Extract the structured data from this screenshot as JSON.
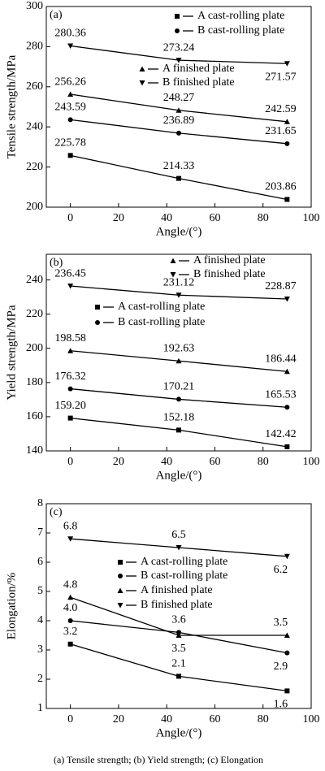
{
  "chart_data": [
    {
      "type": "line",
      "label": "(a)",
      "ylabel": "Tensile strength/MPa",
      "xlabel": "Angle/(°)",
      "x": [
        0,
        45,
        90
      ],
      "xlim": [
        -10,
        100
      ],
      "xticks": [
        0,
        20,
        40,
        60,
        80,
        100
      ],
      "ylim": [
        200,
        300
      ],
      "yticks": [
        200,
        220,
        240,
        260,
        280,
        300
      ],
      "series": [
        {
          "name": "A cast-rolling plate",
          "marker": "square",
          "color": "#000000",
          "values": [
            225.78,
            214.33,
            203.86
          ],
          "value_labels": [
            "225.78",
            "214.33",
            "203.86"
          ]
        },
        {
          "name": "B cast-rolling plate",
          "marker": "circle",
          "color": "#000000",
          "values": [
            243.59,
            236.89,
            231.65
          ],
          "value_labels": [
            "243.59",
            "236.89",
            "231.65"
          ]
        },
        {
          "name": "A finished plate",
          "marker": "triangle-up",
          "color": "#000000",
          "values": [
            256.26,
            248.27,
            242.59
          ],
          "value_labels": [
            "256.26",
            "248.27",
            "242.59"
          ]
        },
        {
          "name": "B finished plate",
          "marker": "triangle-down",
          "color": "#000000",
          "values": [
            280.36,
            273.24,
            271.57
          ],
          "value_labels": [
            "280.36",
            "273.24",
            "271.57"
          ]
        }
      ]
    },
    {
      "type": "line",
      "label": "(b)",
      "ylabel": "Yield strength/MPa",
      "xlabel": "Angle/(°)",
      "x": [
        0,
        45,
        90
      ],
      "xlim": [
        -10,
        100
      ],
      "xticks": [
        0,
        20,
        40,
        60,
        80,
        100
      ],
      "ylim": [
        140,
        255
      ],
      "yticks": [
        140,
        160,
        180,
        200,
        220,
        240
      ],
      "series": [
        {
          "name": "A cast-rolling plate",
          "marker": "square",
          "color": "#000000",
          "values": [
            159.2,
            152.18,
            142.42
          ],
          "value_labels": [
            "159.20",
            "152.18",
            "142.42"
          ]
        },
        {
          "name": "B cast-rolling plate",
          "marker": "circle",
          "color": "#000000",
          "values": [
            176.32,
            170.21,
            165.53
          ],
          "value_labels": [
            "176.32",
            "170.21",
            "165.53"
          ]
        },
        {
          "name": "A finished plate",
          "marker": "triangle-up",
          "color": "#000000",
          "values": [
            198.58,
            192.63,
            186.44
          ],
          "value_labels": [
            "198.58",
            "192.63",
            "186.44"
          ]
        },
        {
          "name": "B finished plate",
          "marker": "triangle-down",
          "color": "#000000",
          "values": [
            236.45,
            231.12,
            228.87
          ],
          "value_labels": [
            "236.45",
            "231.12",
            "228.87"
          ]
        }
      ]
    },
    {
      "type": "line",
      "label": "(c)",
      "ylabel": "Elongation/%",
      "xlabel": "Angle/(°)",
      "x": [
        0,
        45,
        90
      ],
      "xlim": [
        -10,
        100
      ],
      "xticks": [
        0,
        20,
        40,
        60,
        80,
        100
      ],
      "ylim": [
        1,
        8
      ],
      "yticks": [
        1,
        2,
        3,
        4,
        5,
        6,
        7,
        8
      ],
      "series": [
        {
          "name": "A cast-rolling plate",
          "marker": "square",
          "color": "#000000",
          "values": [
            3.2,
            2.1,
            1.6
          ],
          "value_labels": [
            "3.2",
            "2.1",
            "1.6"
          ]
        },
        {
          "name": "B cast-rolling plate",
          "marker": "circle",
          "color": "#000000",
          "values": [
            4,
            3.6,
            2.9
          ],
          "value_labels": [
            "4.0",
            "3.6",
            "2.9"
          ]
        },
        {
          "name": "A finished plate",
          "marker": "triangle-up",
          "color": "#000000",
          "values": [
            4.8,
            3.5,
            3.5
          ],
          "value_labels": [
            "4.8",
            "3.5",
            "3.5"
          ]
        },
        {
          "name": "B finished plate",
          "marker": "triangle-down",
          "color": "#000000",
          "values": [
            6.8,
            6.5,
            6.2
          ],
          "value_labels": [
            "6.8",
            "6.5",
            "6.2"
          ]
        }
      ]
    }
  ],
  "caption": "(a) Tensile strength; (b) Yield strength; (c) Elongation"
}
